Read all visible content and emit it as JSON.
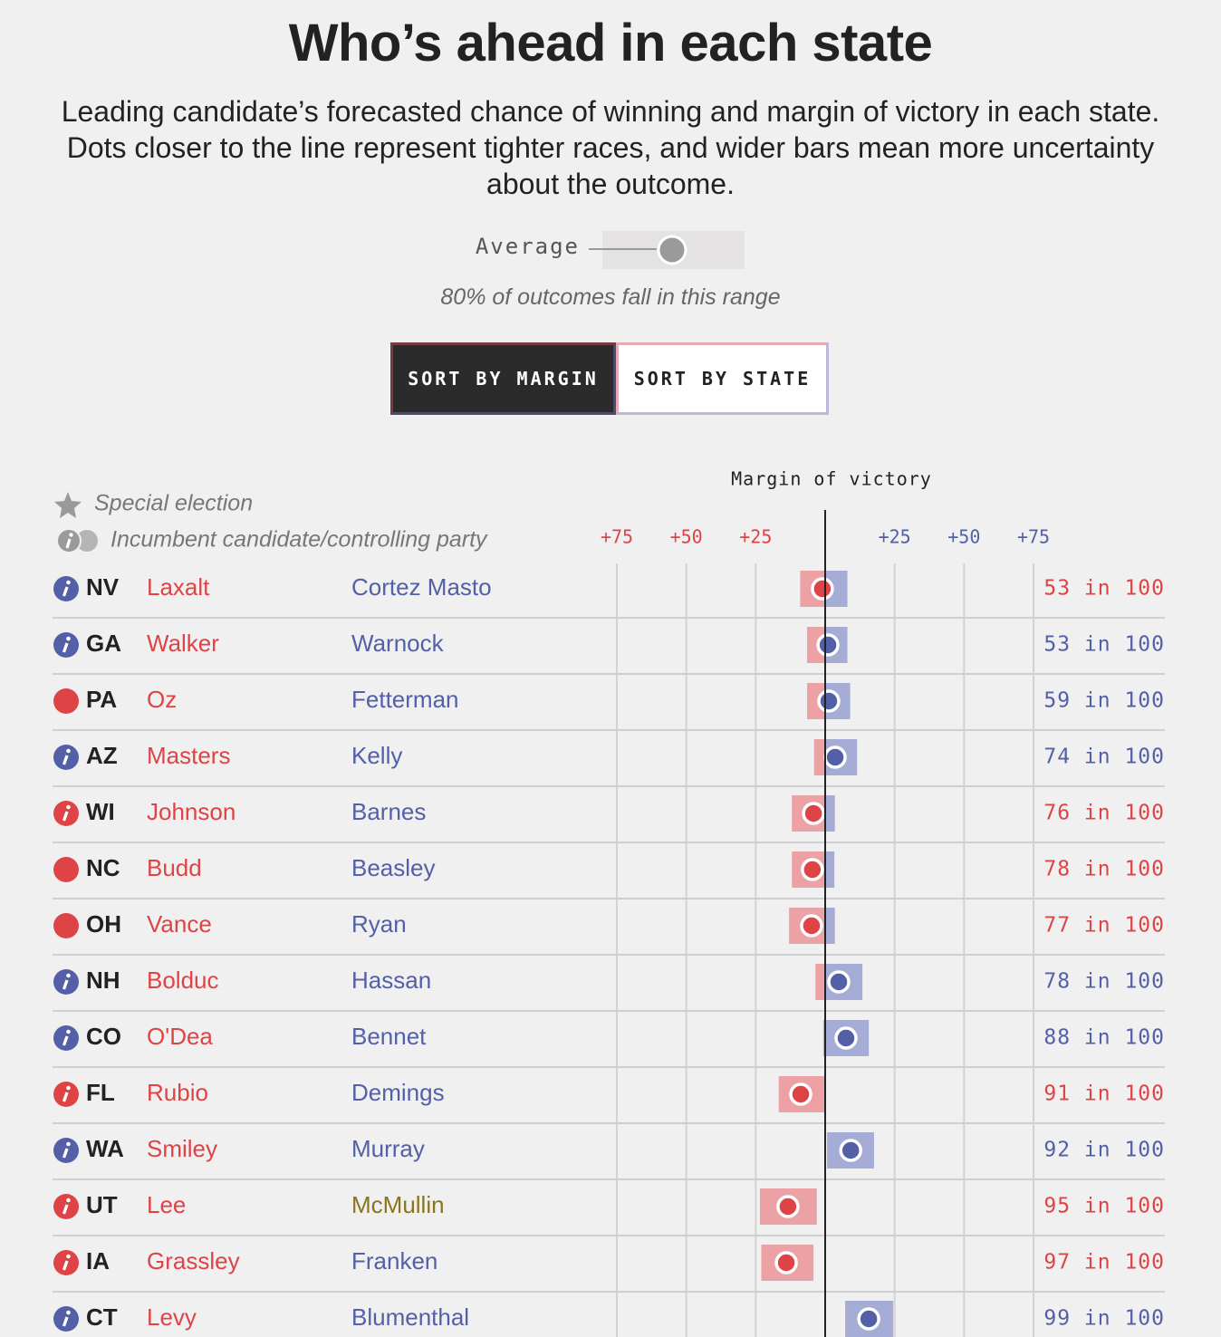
{
  "chart_data": {
    "type": "dot-range",
    "title": "Who’s ahead in each state",
    "subtitle": "Leading candidate’s forecasted chance of winning and margin of victory in each state. Dots closer to the line represent tighter races, and wider bars mean more uncertainty about the outcome.",
    "toggle_label": "Average",
    "range_note": "80% of outcomes fall in this range",
    "buttons": [
      "SORT BY MARGIN",
      "SORT BY STATE"
    ],
    "axis_title": "Margin of victory",
    "legend": {
      "special": "Special election",
      "incumbent": "Incumbent candidate/controlling party"
    },
    "xlim": [
      -75,
      75
    ],
    "xticks": [
      {
        "value": -75,
        "label": "+75"
      },
      {
        "value": -50,
        "label": "+50"
      },
      {
        "value": -25,
        "label": "+25"
      },
      {
        "value": 25,
        "label": "+25"
      },
      {
        "value": 50,
        "label": "+50"
      },
      {
        "value": 75,
        "label": "+75"
      }
    ],
    "zero_line": 0,
    "colors": {
      "R": "#de4446",
      "D": "#5360a8",
      "I": "#8a7420",
      "R_range": "#eca2a5",
      "D_range": "#a5acd6"
    },
    "rows": [
      {
        "state": "NV",
        "republican": "Laxalt",
        "democrat": "Cortez Masto",
        "democrat_party": "D",
        "marker": "incumbent",
        "party": "D",
        "margin": -1,
        "low": -9,
        "high": 8,
        "chance": 53,
        "chance_label": "53 in 100"
      },
      {
        "state": "GA",
        "republican": "Walker",
        "democrat": "Warnock",
        "democrat_party": "D",
        "marker": "incumbent",
        "party": "D",
        "margin": 1,
        "low": -6.5,
        "high": 8,
        "chance": 53,
        "chance_label": "53 in 100"
      },
      {
        "state": "PA",
        "republican": "Oz",
        "democrat": "Fetterman",
        "democrat_party": "D",
        "marker": "open",
        "party": "R",
        "margin": 1.3,
        "low": -6.5,
        "high": 9,
        "chance": 59,
        "chance_label": "59 in 100"
      },
      {
        "state": "AZ",
        "republican": "Masters",
        "democrat": "Kelly",
        "democrat_party": "D",
        "marker": "incumbent",
        "party": "D",
        "margin": 3.6,
        "low": -4,
        "high": 11.5,
        "chance": 74,
        "chance_label": "74 in 100"
      },
      {
        "state": "WI",
        "republican": "Johnson",
        "democrat": "Barnes",
        "democrat_party": "D",
        "marker": "incumbent",
        "party": "R",
        "margin": -4.2,
        "low": -12,
        "high": 3.5,
        "chance": 76,
        "chance_label": "76 in 100"
      },
      {
        "state": "NC",
        "republican": "Budd",
        "democrat": "Beasley",
        "democrat_party": "D",
        "marker": "open",
        "party": "R",
        "margin": -4.6,
        "low": -12,
        "high": 3.3,
        "chance": 78,
        "chance_label": "78 in 100"
      },
      {
        "state": "OH",
        "republican": "Vance",
        "democrat": "Ryan",
        "democrat_party": "D",
        "marker": "open",
        "party": "R",
        "margin": -4.9,
        "low": -13,
        "high": 3.5,
        "chance": 77,
        "chance_label": "77 in 100"
      },
      {
        "state": "NH",
        "republican": "Bolduc",
        "democrat": "Hassan",
        "democrat_party": "D",
        "marker": "incumbent",
        "party": "D",
        "margin": 4.9,
        "low": -3.5,
        "high": 13.4,
        "chance": 78,
        "chance_label": "78 in 100"
      },
      {
        "state": "CO",
        "republican": "O'Dea",
        "democrat": "Bennet",
        "democrat_party": "D",
        "marker": "incumbent",
        "party": "D",
        "margin": 7.5,
        "low": -0.7,
        "high": 15.7,
        "chance": 88,
        "chance_label": "88 in 100"
      },
      {
        "state": "FL",
        "republican": "Rubio",
        "democrat": "Demings",
        "democrat_party": "D",
        "marker": "incumbent",
        "party": "R",
        "margin": -8.8,
        "low": -16.7,
        "high": -0.3,
        "chance": 91,
        "chance_label": "91 in 100"
      },
      {
        "state": "WA",
        "republican": "Smiley",
        "democrat": "Murray",
        "democrat_party": "D",
        "marker": "incumbent",
        "party": "D",
        "margin": 9.2,
        "low": 0.7,
        "high": 17.6,
        "chance": 92,
        "chance_label": "92 in 100"
      },
      {
        "state": "UT",
        "republican": "Lee",
        "democrat": "McMullin",
        "democrat_party": "I",
        "marker": "incumbent",
        "party": "R",
        "margin": -13.4,
        "low": -23.5,
        "high": -3,
        "chance": 95,
        "chance_label": "95 in 100"
      },
      {
        "state": "IA",
        "republican": "Grassley",
        "democrat": "Franken",
        "democrat_party": "D",
        "marker": "incumbent",
        "party": "R",
        "margin": -14,
        "low": -23,
        "high": -4.2,
        "chance": 97,
        "chance_label": "97 in 100"
      },
      {
        "state": "CT",
        "republican": "Levy",
        "democrat": "Blumenthal",
        "democrat_party": "D",
        "marker": "incumbent",
        "party": "D",
        "margin": 15.7,
        "low": 7.2,
        "high": 24.5,
        "chance": 99,
        "chance_label": "99 in 100"
      }
    ]
  }
}
